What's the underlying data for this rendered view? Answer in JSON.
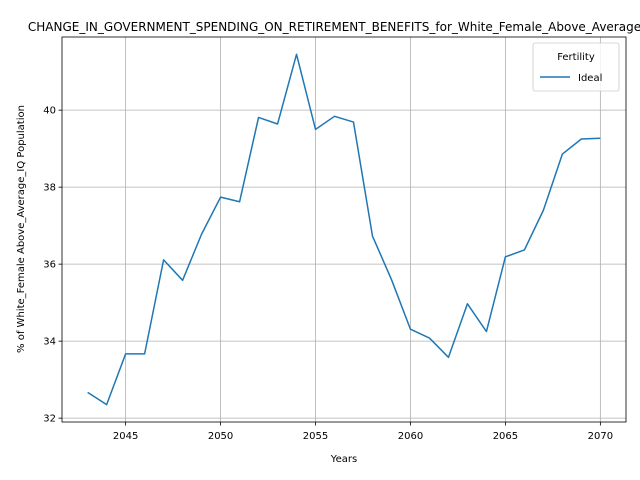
{
  "chart_data": {
    "type": "line",
    "title": "CHANGE_IN_GOVERNMENT_SPENDING_ON_RETIREMENT_BENEFITS_for_White_Female_Above_Average_IQ",
    "xlabel": "Years",
    "ylabel": "% of White_Female Above_Average_IQ Population",
    "xlim": [
      2041.65,
      2071.35
    ],
    "ylim": [
      31.9,
      41.9
    ],
    "x_ticks": [
      2045,
      2050,
      2055,
      2060,
      2065,
      2070
    ],
    "y_ticks": [
      32,
      34,
      36,
      38,
      40
    ],
    "grid": true,
    "legend": {
      "title": "Fertility",
      "location": "top-right"
    },
    "series": [
      {
        "name": "Ideal",
        "color": "#1f77b4",
        "x": [
          2043,
          2044,
          2045,
          2046,
          2047,
          2048,
          2049,
          2050,
          2051,
          2052,
          2053,
          2054,
          2055,
          2056,
          2057,
          2058,
          2059,
          2060,
          2061,
          2062,
          2063,
          2064,
          2065,
          2066,
          2067,
          2068,
          2069,
          2070
        ],
        "values": [
          32.67,
          32.35,
          33.67,
          33.67,
          36.11,
          35.58,
          36.78,
          37.74,
          37.62,
          39.81,
          39.64,
          41.45,
          39.5,
          39.84,
          39.69,
          36.73,
          35.6,
          34.31,
          34.08,
          33.58,
          34.97,
          34.25,
          36.19,
          36.37,
          37.4,
          38.86,
          39.25,
          39.27
        ]
      }
    ]
  }
}
